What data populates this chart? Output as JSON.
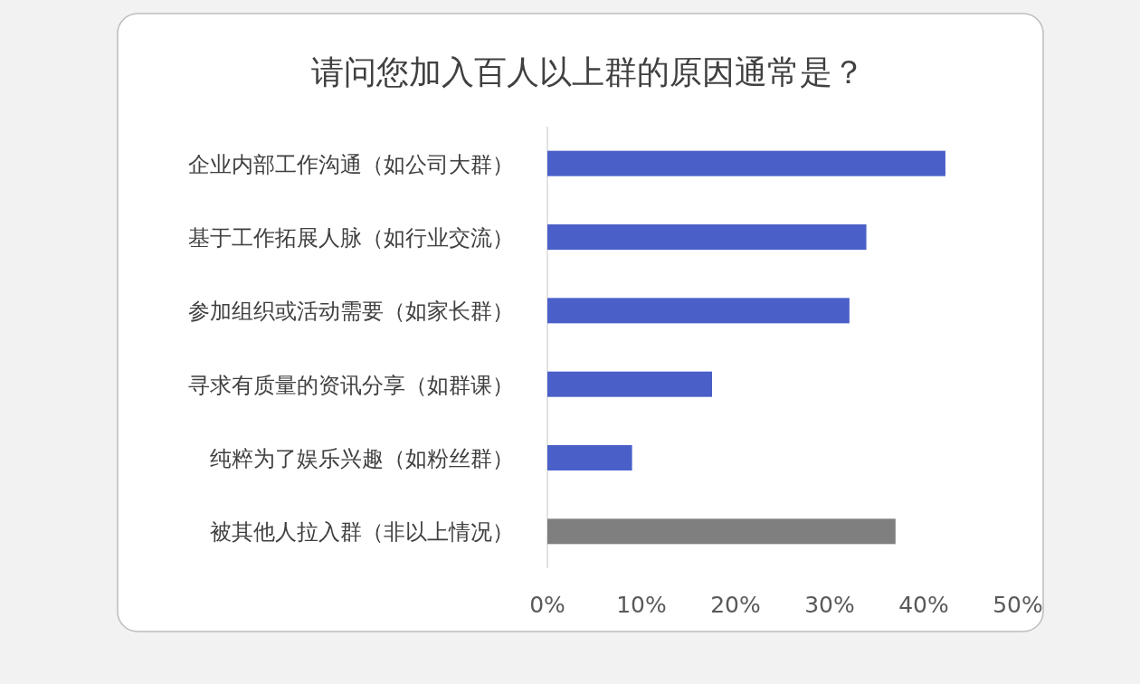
{
  "chart_data": {
    "type": "bar",
    "orientation": "horizontal",
    "title": "请问您加入百人以上群的原因通常是？",
    "categories": [
      "企业内部工作沟通（如公司大群）",
      "基于工作拓展人脉（如行业交流）",
      "参加组织或活动需要（如家长群）",
      "寻求有质量的资讯分享（如群课）",
      "纯粹为了娱乐兴趣（如粉丝群）",
      "被其他人拉入群（非以上情况）"
    ],
    "values": [
      42.3,
      33.9,
      32.1,
      17.5,
      9.0,
      37.0
    ],
    "colors": [
      "#4a5fc8",
      "#4a5fc8",
      "#4a5fc8",
      "#4a5fc8",
      "#4a5fc8",
      "#7f7f7f"
    ],
    "xlim": [
      0,
      50
    ],
    "xticks": [
      {
        "value": 0,
        "label": "0%"
      },
      {
        "value": 10,
        "label": "10%"
      },
      {
        "value": 20,
        "label": "20%"
      },
      {
        "value": 30,
        "label": "30%"
      },
      {
        "value": 40,
        "label": "40%"
      },
      {
        "value": 50,
        "label": "50%"
      }
    ]
  }
}
